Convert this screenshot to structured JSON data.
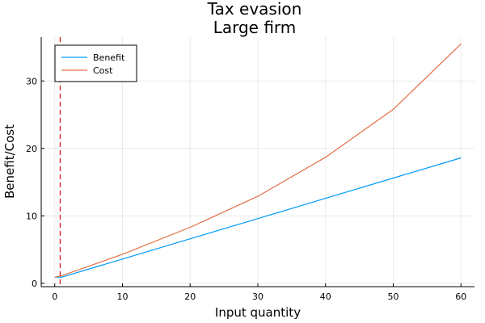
{
  "chart_data": {
    "type": "line",
    "title": "Tax evasion",
    "subtitle": "Large firm",
    "xlabel": "Input quantity",
    "ylabel": "Benefit/Cost",
    "xlim": [
      -2,
      62
    ],
    "ylim": [
      -0.5,
      36.5
    ],
    "xticks": [
      0,
      10,
      20,
      30,
      40,
      50,
      60
    ],
    "yticks": [
      0,
      10,
      20,
      30
    ],
    "grid": true,
    "legend_position": "top-left",
    "vline": {
      "x": 0.8,
      "color": "#e31a1c",
      "style": "dashed"
    },
    "series": [
      {
        "name": "Benefit",
        "color": "#009af9",
        "x": [
          0,
          1,
          10,
          20,
          30,
          40,
          50,
          60
        ],
        "y": [
          0.9,
          0.9,
          3.6,
          6.6,
          9.6,
          12.6,
          15.6,
          18.6
        ]
      },
      {
        "name": "Cost",
        "color": "#e26f46",
        "x": [
          0,
          1,
          10,
          20,
          30,
          40,
          50,
          60
        ],
        "y": [
          0.9,
          1.1,
          4.3,
          8.3,
          12.9,
          18.7,
          25.8,
          35.5
        ]
      }
    ]
  }
}
